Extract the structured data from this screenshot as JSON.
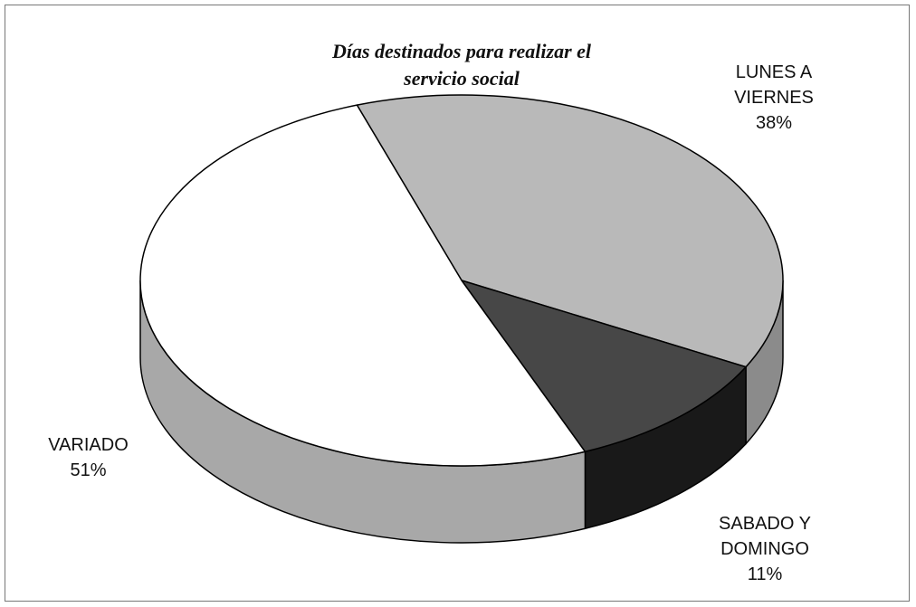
{
  "chart_data": {
    "type": "pie",
    "title": "Días destinados para realizar el servicio social",
    "categories": [
      "LUNES A VIERNES",
      "SABADO Y DOMINGO",
      "VARIADO"
    ],
    "values": [
      38,
      11,
      51
    ],
    "value_labels": [
      "38%",
      "11%",
      "51%"
    ],
    "colors": [
      "#b9b9b9",
      "#474747",
      "#ffffff"
    ]
  }
}
